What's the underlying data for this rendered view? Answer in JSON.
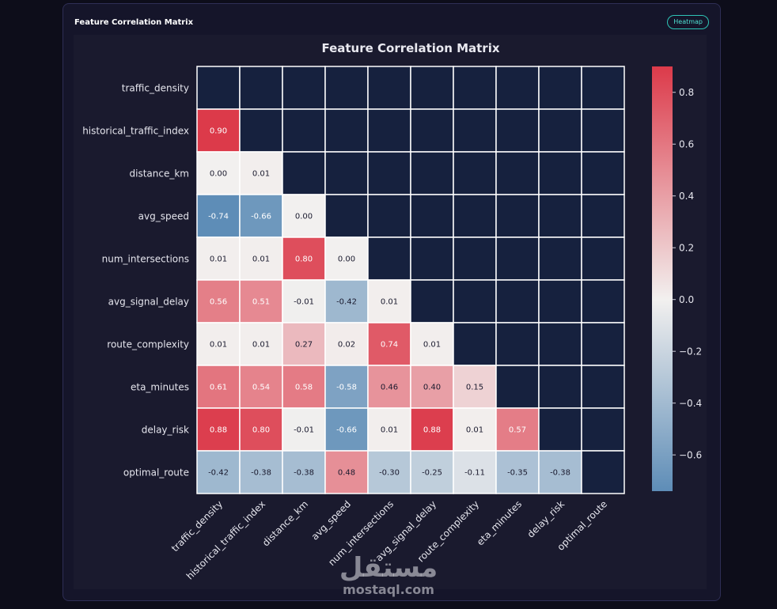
{
  "card": {
    "title": "Feature Correlation Matrix",
    "badge": "Heatmap"
  },
  "watermark": {
    "logo": "مستقل",
    "url": "mostaql.com"
  },
  "chart_data": {
    "type": "heatmap",
    "title": "Feature Correlation Matrix",
    "labels": [
      "traffic_density",
      "historical_traffic_index",
      "distance_km",
      "avg_speed",
      "num_intersections",
      "avg_signal_delay",
      "route_complexity",
      "eta_minutes",
      "delay_risk",
      "optimal_route"
    ],
    "matrix": [
      [
        null,
        null,
        null,
        null,
        null,
        null,
        null,
        null,
        null,
        null
      ],
      [
        0.9,
        null,
        null,
        null,
        null,
        null,
        null,
        null,
        null,
        null
      ],
      [
        0.0,
        0.01,
        null,
        null,
        null,
        null,
        null,
        null,
        null,
        null
      ],
      [
        -0.74,
        -0.66,
        0.0,
        null,
        null,
        null,
        null,
        null,
        null,
        null
      ],
      [
        0.01,
        0.01,
        0.8,
        0.0,
        null,
        null,
        null,
        null,
        null,
        null
      ],
      [
        0.56,
        0.51,
        -0.01,
        -0.42,
        0.01,
        null,
        null,
        null,
        null,
        null
      ],
      [
        0.01,
        0.01,
        0.27,
        0.02,
        0.74,
        0.01,
        null,
        null,
        null,
        null
      ],
      [
        0.61,
        0.54,
        0.58,
        -0.58,
        0.46,
        0.4,
        0.15,
        null,
        null,
        null
      ],
      [
        0.88,
        0.8,
        -0.01,
        -0.66,
        0.01,
        0.88,
        0.01,
        0.57,
        null,
        null
      ],
      [
        -0.42,
        -0.38,
        -0.38,
        0.48,
        -0.3,
        -0.25,
        -0.11,
        -0.35,
        -0.38,
        null
      ]
    ],
    "masked": "upper triangle including diagonal",
    "colorbar": {
      "min": -0.74,
      "max": 0.9,
      "ticks": [
        0.8,
        0.6,
        0.4,
        0.2,
        0.0,
        -0.2,
        -0.4,
        -0.6
      ],
      "tick_labels": [
        "0.8",
        "0.6",
        "0.4",
        "0.2",
        "0.0",
        "−0.2",
        "−0.4",
        "−0.6"
      ]
    },
    "colors": {
      "negative": "#5e8db7",
      "neutral": "#f2f0ef",
      "positive": "#dc3a4a",
      "masked": "#16213e",
      "grid": "#ffffff"
    }
  }
}
